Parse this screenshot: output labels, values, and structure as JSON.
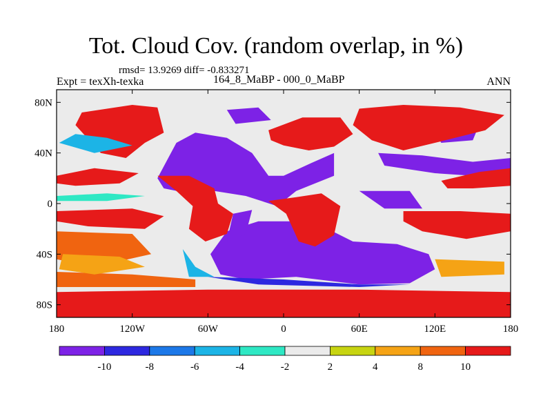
{
  "title": "Tot. Cloud Cov. (random overlap, in %)",
  "stats_line": "rmsd= 13.9269 diff= -0.833271",
  "experiment_label": "Expt = texXh-texka",
  "case_label": "164_8_MaBP - 000_0_MaBP",
  "season_label": "ANN",
  "chart_data": {
    "type": "heatmap",
    "title": "Tot. Cloud Cov. (random overlap, in %)",
    "xlabel": "",
    "ylabel": "",
    "xlim": [
      -180,
      180
    ],
    "ylim": [
      -90,
      90
    ],
    "x_ticks": [
      {
        "value": -180,
        "label": "180"
      },
      {
        "value": -120,
        "label": "120W"
      },
      {
        "value": -60,
        "label": "60W"
      },
      {
        "value": 0,
        "label": "0"
      },
      {
        "value": 60,
        "label": "60E"
      },
      {
        "value": 120,
        "label": "120E"
      },
      {
        "value": 180,
        "label": "180"
      }
    ],
    "y_ticks": [
      {
        "value": 80,
        "label": "80N"
      },
      {
        "value": 40,
        "label": "40N"
      },
      {
        "value": 0,
        "label": "0"
      },
      {
        "value": -40,
        "label": "40S"
      },
      {
        "value": -80,
        "label": "80S"
      }
    ],
    "colorbar": {
      "boundaries": [
        -10,
        -8,
        -6,
        -4,
        -2,
        2,
        4,
        8,
        10
      ],
      "labels": [
        "-10",
        "-8",
        "-6",
        "-4",
        "-2",
        "2",
        "4",
        "8",
        "10"
      ],
      "colors": [
        "#7d22e6",
        "#2d28e0",
        "#1c78e8",
        "#1cb4e6",
        "#2ee8c4",
        "#ebebeb",
        "#c7d411",
        "#f5a315",
        "#f06410",
        "#e61a1a"
      ]
    },
    "regions": [
      {
        "class": 0,
        "lonlat": [
          [
            -100,
            20
          ],
          [
            -85,
            48
          ],
          [
            -70,
            56
          ],
          [
            -45,
            52
          ],
          [
            -25,
            40
          ],
          [
            -12,
            22
          ],
          [
            0,
            22
          ],
          [
            22,
            32
          ],
          [
            40,
            40
          ],
          [
            40,
            22
          ],
          [
            10,
            10
          ],
          [
            -5,
            -2
          ],
          [
            -30,
            6
          ],
          [
            -55,
            10
          ],
          [
            -65,
            6
          ],
          [
            -95,
            12
          ]
        ]
      },
      {
        "class": 0,
        "lonlat": [
          [
            -58,
            -40
          ],
          [
            -45,
            -22
          ],
          [
            -20,
            -14
          ],
          [
            10,
            -14
          ],
          [
            35,
            -20
          ],
          [
            55,
            -30
          ],
          [
            90,
            -32
          ],
          [
            115,
            -40
          ],
          [
            120,
            -52
          ],
          [
            100,
            -63
          ],
          [
            60,
            -64
          ],
          [
            10,
            -58
          ],
          [
            -30,
            -60
          ],
          [
            -50,
            -56
          ]
        ]
      },
      {
        "class": 0,
        "lonlat": [
          [
            75,
            40
          ],
          [
            110,
            38
          ],
          [
            150,
            33
          ],
          [
            180,
            36
          ],
          [
            180,
            22
          ],
          [
            150,
            22
          ],
          [
            120,
            24
          ],
          [
            80,
            30
          ]
        ]
      },
      {
        "class": 0,
        "lonlat": [
          [
            -40,
            -8
          ],
          [
            -25,
            -5
          ],
          [
            -30,
            -24
          ],
          [
            -45,
            -30
          ]
        ]
      },
      {
        "class": 0,
        "lonlat": [
          [
            60,
            10
          ],
          [
            100,
            10
          ],
          [
            110,
            -4
          ],
          [
            80,
            -4
          ]
        ]
      },
      {
        "class": 0,
        "lonlat": [
          [
            -45,
            74
          ],
          [
            -20,
            76
          ],
          [
            -10,
            66
          ],
          [
            -38,
            63
          ]
        ]
      },
      {
        "class": 0,
        "lonlat": [
          [
            120,
            56
          ],
          [
            155,
            62
          ],
          [
            150,
            50
          ],
          [
            125,
            48
          ]
        ]
      },
      {
        "class": 9,
        "lonlat": [
          [
            -160,
            72
          ],
          [
            -120,
            78
          ],
          [
            -100,
            76
          ],
          [
            -95,
            56
          ],
          [
            -110,
            48
          ],
          [
            -125,
            36
          ],
          [
            -145,
            40
          ],
          [
            -165,
            62
          ]
        ]
      },
      {
        "class": 9,
        "lonlat": [
          [
            -100,
            22
          ],
          [
            -75,
            22
          ],
          [
            -55,
            12
          ],
          [
            -52,
            0
          ],
          [
            -40,
            -8
          ],
          [
            -45,
            -24
          ],
          [
            -62,
            -30
          ],
          [
            -75,
            -20
          ],
          [
            -72,
            -2
          ],
          [
            -85,
            10
          ]
        ]
      },
      {
        "class": 9,
        "lonlat": [
          [
            -12,
            2
          ],
          [
            10,
            5
          ],
          [
            30,
            8
          ],
          [
            45,
            -2
          ],
          [
            40,
            -25
          ],
          [
            25,
            -34
          ],
          [
            12,
            -30
          ],
          [
            2,
            -8
          ]
        ]
      },
      {
        "class": 9,
        "lonlat": [
          [
            -12,
            58
          ],
          [
            15,
            68
          ],
          [
            45,
            68
          ],
          [
            55,
            55
          ],
          [
            40,
            45
          ],
          [
            20,
            42
          ],
          [
            0,
            46
          ],
          [
            -10,
            50
          ]
        ]
      },
      {
        "class": 9,
        "lonlat": [
          [
            60,
            75
          ],
          [
            95,
            78
          ],
          [
            140,
            76
          ],
          [
            175,
            70
          ],
          [
            160,
            58
          ],
          [
            120,
            48
          ],
          [
            95,
            42
          ],
          [
            70,
            50
          ],
          [
            55,
            62
          ]
        ]
      },
      {
        "class": 9,
        "lonlat": [
          [
            95,
            -6
          ],
          [
            140,
            -6
          ],
          [
            180,
            -8
          ],
          [
            180,
            -22
          ],
          [
            145,
            -28
          ],
          [
            110,
            -22
          ],
          [
            95,
            -14
          ]
        ]
      },
      {
        "class": 9,
        "lonlat": [
          [
            125,
            18
          ],
          [
            155,
            25
          ],
          [
            180,
            28
          ],
          [
            180,
            14
          ],
          [
            150,
            12
          ],
          [
            130,
            12
          ]
        ]
      },
      {
        "class": 9,
        "lonlat": [
          [
            -180,
            22
          ],
          [
            -150,
            28
          ],
          [
            -115,
            24
          ],
          [
            -130,
            16
          ],
          [
            -165,
            14
          ],
          [
            -180,
            16
          ]
        ]
      },
      {
        "class": 9,
        "lonlat": [
          [
            -180,
            -6
          ],
          [
            -120,
            -4
          ],
          [
            -95,
            -10
          ],
          [
            -110,
            -20
          ],
          [
            -155,
            -18
          ],
          [
            -180,
            -14
          ]
        ]
      },
      {
        "class": 9,
        "lonlat": [
          [
            -180,
            -70
          ],
          [
            -60,
            -68
          ],
          [
            60,
            -68
          ],
          [
            180,
            -70
          ],
          [
            180,
            -90
          ],
          [
            -180,
            -90
          ]
        ]
      },
      {
        "class": 8,
        "lonlat": [
          [
            -180,
            -22
          ],
          [
            -120,
            -24
          ],
          [
            -105,
            -40
          ],
          [
            -150,
            -50
          ],
          [
            -180,
            -44
          ]
        ]
      },
      {
        "class": 8,
        "lonlat": [
          [
            -180,
            -54
          ],
          [
            -120,
            -56
          ],
          [
            -70,
            -60
          ],
          [
            -70,
            -66
          ],
          [
            -180,
            -66
          ]
        ]
      },
      {
        "class": 7,
        "lonlat": [
          [
            -175,
            -40
          ],
          [
            -130,
            -42
          ],
          [
            -110,
            -50
          ],
          [
            -150,
            -56
          ],
          [
            -178,
            -52
          ]
        ]
      },
      {
        "class": 7,
        "lonlat": [
          [
            120,
            -44
          ],
          [
            175,
            -46
          ],
          [
            175,
            -56
          ],
          [
            125,
            -58
          ]
        ]
      },
      {
        "class": 3,
        "lonlat": [
          [
            -178,
            48
          ],
          [
            -165,
            55
          ],
          [
            -140,
            52
          ],
          [
            -120,
            46
          ],
          [
            -150,
            40
          ]
        ]
      },
      {
        "class": 3,
        "lonlat": [
          [
            -80,
            -36
          ],
          [
            -70,
            -50
          ],
          [
            -55,
            -58
          ],
          [
            -75,
            -58
          ]
        ]
      },
      {
        "class": 4,
        "lonlat": [
          [
            -180,
            6
          ],
          [
            -140,
            8
          ],
          [
            -110,
            6
          ],
          [
            -140,
            2
          ],
          [
            -180,
            2
          ]
        ]
      },
      {
        "class": 1,
        "lonlat": [
          [
            -60,
            -58
          ],
          [
            0,
            -60
          ],
          [
            60,
            -64
          ],
          [
            100,
            -64
          ],
          [
            60,
            -66
          ],
          [
            -20,
            -64
          ]
        ]
      }
    ]
  }
}
